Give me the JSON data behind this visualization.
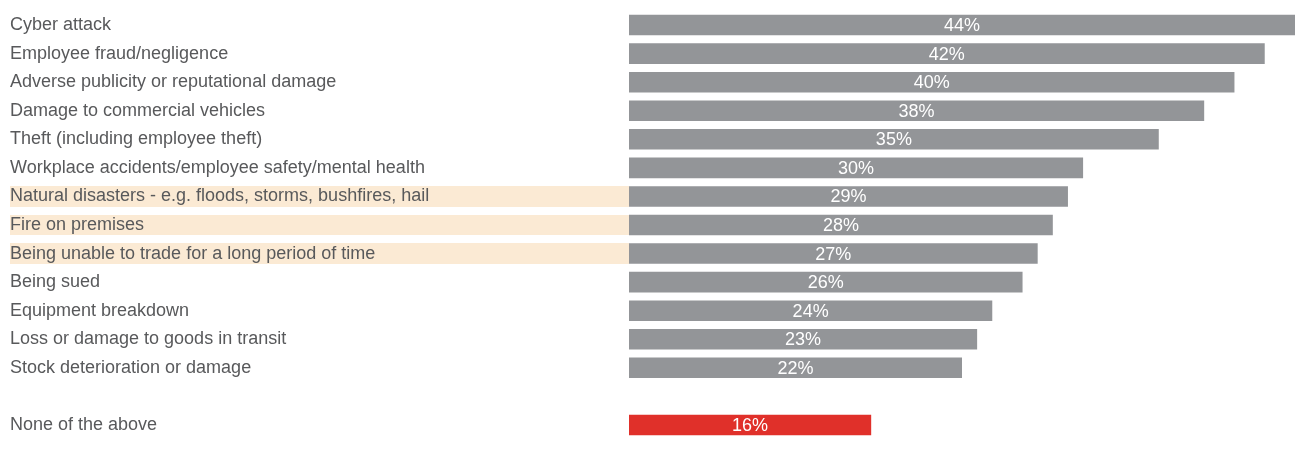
{
  "chart_data": {
    "type": "bar",
    "orientation": "horizontal",
    "categories": [
      "Cyber attack",
      "Employee fraud/negligence",
      "Adverse publicity or reputational damage",
      "Damage to commercial vehicles",
      "Theft (including employee theft)",
      "Workplace accidents/employee safety/mental health",
      "Natural disasters - e.g. floods, storms, bushfires, hail",
      "Fire on premises",
      "Being unable to trade for a long period of time",
      "Being sued",
      "Equipment breakdown",
      "Loss or damage to goods in transit",
      "Stock deterioration or damage",
      null,
      "None of the above"
    ],
    "values": [
      44,
      42,
      40,
      38,
      35,
      30,
      29,
      28,
      27,
      26,
      24,
      23,
      22,
      null,
      16
    ],
    "value_labels": [
      "44%",
      "42%",
      "40%",
      "38%",
      "35%",
      "30%",
      "29%",
      "28%",
      "27%",
      "26%",
      "24%",
      "23%",
      "22%",
      null,
      "16%"
    ],
    "colors": [
      "#939598",
      "#939598",
      "#939598",
      "#939598",
      "#939598",
      "#939598",
      "#939598",
      "#939598",
      "#939598",
      "#939598",
      "#939598",
      "#939598",
      "#939598",
      "#939598",
      "#e0302a"
    ],
    "xlim": [
      0,
      44
    ],
    "grid": false,
    "legend": false
  }
}
